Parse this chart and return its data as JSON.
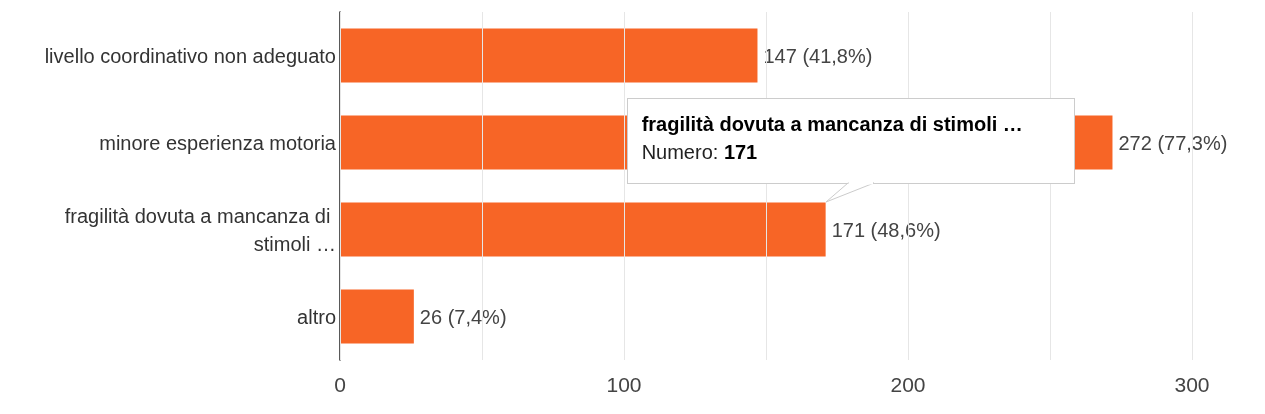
{
  "chart_data": {
    "type": "bar",
    "orientation": "horizontal",
    "categories": [
      "livello coordinativo non adeguato",
      "minore esperienza motoria",
      "fragilità dovuta a mancanza di stimoli …",
      "altro"
    ],
    "values": [
      147,
      272,
      171,
      26
    ],
    "value_labels": [
      "147 (41,8%)",
      "272 (77,3%)",
      "171 (48,6%)",
      "26 (7,4%)"
    ],
    "color": "#f76526",
    "xlim": [
      0,
      300
    ],
    "xticks": [
      0,
      {
        "value": 50,
        "label": null
      },
      100,
      {
        "value": 150,
        "label": null
      },
      200,
      {
        "value": 250,
        "label": null
      },
      300
    ],
    "grid": "x",
    "annotations": [
      "fragilità dovuta a mancanza di stimoli …",
      "Numero: 171"
    ]
  }
}
